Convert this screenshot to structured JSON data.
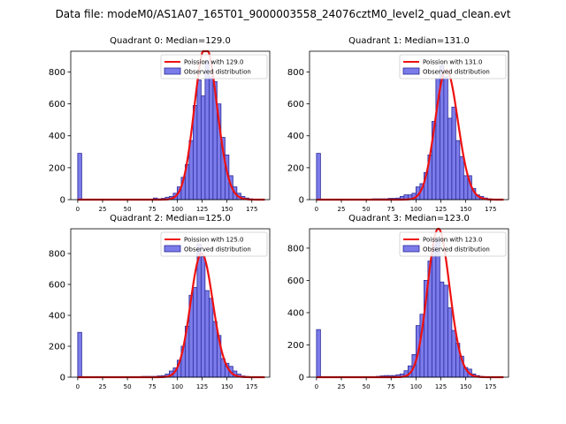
{
  "chart_data": {
    "type": "bar",
    "suptitle": "Data file: modeM0/AS1A07_165T01_9000003558_24076cztM0_level2_quad_clean.evt",
    "colors": {
      "bar_fill": "#7b7bea",
      "bar_edge": "#2a2a9a",
      "fit_line": "#ee1111"
    },
    "panels": [
      {
        "title": "Quadrant 0: Median=129.0",
        "bin_width": 4,
        "bins_start": [
          0,
          76,
          80,
          84,
          88,
          92,
          96,
          100,
          104,
          108,
          112,
          116,
          120,
          124,
          128,
          132,
          136,
          140,
          144,
          148,
          152,
          156,
          160,
          164,
          168,
          172,
          176
        ],
        "values": [
          290,
          10,
          5,
          8,
          15,
          20,
          40,
          80,
          140,
          220,
          370,
          590,
          750,
          650,
          870,
          770,
          740,
          600,
          390,
          280,
          150,
          80,
          40,
          20,
          10,
          5,
          3
        ],
        "fit_mean": 129.0,
        "fit_label": "Poission with 129.0",
        "observed_label": "Observed distribution",
        "xticks": [
          0,
          25,
          50,
          75,
          100,
          125,
          150,
          175
        ],
        "yticks": [
          0,
          200,
          400,
          600,
          800
        ],
        "xlim": [
          -7,
          193
        ],
        "ylim": [
          0,
          930
        ]
      },
      {
        "title": "Quadrant 1: Median=131.0",
        "bin_width": 4,
        "bins_start": [
          0,
          56,
          60,
          64,
          68,
          72,
          76,
          80,
          84,
          88,
          92,
          96,
          100,
          104,
          108,
          112,
          116,
          120,
          124,
          128,
          132,
          136,
          140,
          144,
          148,
          152,
          156,
          160,
          164,
          168,
          172,
          176,
          180
        ],
        "values": [
          290,
          5,
          5,
          5,
          5,
          8,
          8,
          10,
          20,
          30,
          30,
          40,
          80,
          100,
          170,
          280,
          490,
          760,
          840,
          770,
          510,
          580,
          370,
          270,
          150,
          150,
          70,
          30,
          20,
          10,
          5,
          3,
          3
        ],
        "fit_mean": 131.0,
        "fit_label": "Poission with 131.0",
        "observed_label": "Observed distribution",
        "xticks": [
          0,
          25,
          50,
          75,
          100,
          125,
          150,
          175
        ],
        "yticks": [
          0,
          200,
          400,
          600,
          800
        ],
        "xlim": [
          -7,
          193
        ],
        "ylim": [
          0,
          930
        ]
      },
      {
        "title": "Quadrant 2: Median=125.0",
        "bin_width": 4,
        "bins_start": [
          0,
          64,
          68,
          72,
          76,
          80,
          84,
          88,
          92,
          96,
          100,
          104,
          108,
          112,
          116,
          120,
          124,
          128,
          132,
          136,
          140,
          144,
          148,
          152,
          156,
          160,
          164,
          168,
          172
        ],
        "values": [
          290,
          5,
          5,
          5,
          5,
          8,
          10,
          20,
          40,
          60,
          110,
          200,
          330,
          530,
          580,
          860,
          780,
          560,
          510,
          360,
          270,
          120,
          90,
          70,
          40,
          20,
          8,
          5,
          3
        ],
        "fit_mean": 125.0,
        "fit_label": "Poission with 125.0",
        "observed_label": "Observed distribution",
        "xticks": [
          0,
          25,
          50,
          75,
          100,
          125,
          150,
          175
        ],
        "yticks": [
          0,
          200,
          400,
          600,
          800
        ],
        "xlim": [
          -7,
          193
        ],
        "ylim": [
          0,
          960
        ]
      },
      {
        "title": "Quadrant 3: Median=123.0",
        "bin_width": 4,
        "bins_start": [
          0,
          60,
          64,
          68,
          72,
          76,
          80,
          84,
          88,
          92,
          96,
          100,
          104,
          108,
          112,
          116,
          120,
          124,
          128,
          132,
          136,
          140,
          144,
          148,
          152,
          156,
          160,
          164,
          168
        ],
        "values": [
          295,
          5,
          8,
          10,
          10,
          10,
          15,
          20,
          40,
          70,
          140,
          320,
          390,
          600,
          720,
          820,
          860,
          590,
          570,
          430,
          290,
          210,
          130,
          60,
          50,
          20,
          10,
          5,
          3
        ],
        "fit_mean": 123.0,
        "fit_label": "Poission with 123.0",
        "observed_label": "Observed distribution",
        "xticks": [
          0,
          25,
          50,
          75,
          100,
          125,
          150,
          175
        ],
        "yticks": [
          0,
          200,
          400,
          600,
          800
        ],
        "xlim": [
          -7,
          193
        ],
        "ylim": [
          0,
          920
        ]
      }
    ]
  }
}
